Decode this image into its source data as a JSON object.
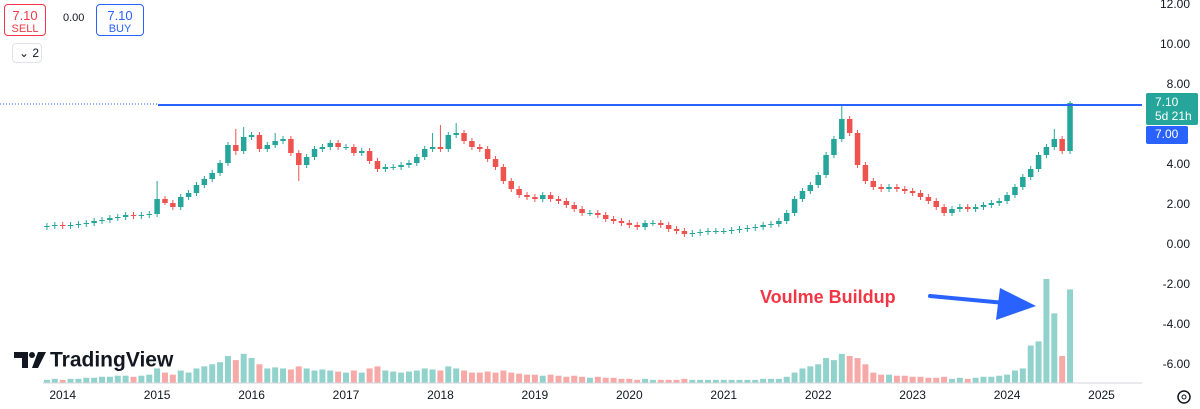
{
  "toolbar": {
    "sell_price": "7.10",
    "sell_label": "SELL",
    "spread": "0.00",
    "buy_price": "7.10",
    "buy_label": "BUY",
    "indicator_count": "2"
  },
  "chart_data": {
    "type": "candlestick",
    "logo": "TradingView",
    "annotation": "Voulme Buildup",
    "categories": [
      null,
      null,
      "2014",
      null,
      null,
      null,
      null,
      null,
      null,
      null,
      null,
      null,
      null,
      null,
      "2015",
      null,
      null,
      null,
      null,
      null,
      null,
      null,
      null,
      null,
      null,
      null,
      "2016",
      null,
      null,
      null,
      null,
      null,
      null,
      null,
      null,
      null,
      null,
      null,
      "2017",
      null,
      null,
      null,
      null,
      null,
      null,
      null,
      null,
      null,
      null,
      null,
      "2018",
      null,
      null,
      null,
      null,
      null,
      null,
      null,
      null,
      null,
      null,
      null,
      "2019",
      null,
      null,
      null,
      null,
      null,
      null,
      null,
      null,
      null,
      null,
      null,
      "2020",
      null,
      null,
      null,
      null,
      null,
      null,
      null,
      null,
      null,
      null,
      null,
      "2021",
      null,
      null,
      null,
      null,
      null,
      null,
      null,
      null,
      null,
      null,
      null,
      "2022",
      null,
      null,
      null,
      null,
      null,
      null,
      null,
      null,
      null,
      null,
      null,
      "2023",
      null,
      null,
      null,
      null,
      null,
      null,
      null,
      null,
      null,
      null,
      null,
      "2024",
      null,
      null,
      null,
      null,
      null,
      null,
      null,
      null,
      null,
      null,
      null,
      "2025",
      null,
      null,
      null,
      null
    ],
    "open": [
      0.9,
      0.95,
      1.0,
      0.95,
      1.0,
      1.05,
      1.1,
      1.2,
      1.25,
      1.35,
      1.4,
      1.5,
      1.45,
      1.5,
      1.55,
      2.3,
      2.1,
      1.9,
      2.4,
      2.6,
      3.0,
      3.3,
      3.6,
      4.1,
      5.0,
      4.7,
      5.4,
      5.5,
      4.8,
      5.0,
      5.2,
      5.3,
      4.6,
      4.0,
      4.4,
      4.8,
      4.9,
      5.1,
      4.9,
      4.9,
      4.6,
      4.7,
      4.2,
      3.8,
      3.9,
      3.9,
      4.0,
      4.1,
      4.4,
      4.8,
      4.9,
      4.8,
      5.5,
      5.6,
      5.2,
      4.9,
      4.8,
      4.3,
      3.9,
      3.2,
      2.8,
      2.5,
      2.4,
      2.3,
      2.5,
      2.3,
      2.2,
      2.0,
      1.8,
      1.6,
      1.6,
      1.5,
      1.3,
      1.2,
      1.1,
      1.0,
      0.9,
      1.1,
      1.1,
      1.0,
      0.8,
      0.7,
      0.55,
      0.6,
      0.65,
      0.7,
      0.7,
      0.7,
      0.75,
      0.8,
      0.85,
      0.9,
      1.0,
      1.05,
      1.2,
      1.6,
      2.3,
      2.7,
      3.0,
      3.5,
      4.5,
      5.3,
      6.3,
      5.6,
      4.0,
      3.2,
      2.9,
      2.8,
      2.9,
      2.8,
      2.7,
      2.6,
      2.4,
      2.2,
      1.9,
      1.6,
      1.8,
      1.9,
      1.8,
      1.9,
      2.0,
      2.1,
      2.2,
      2.5,
      2.9,
      3.4,
      3.8,
      4.5,
      4.9,
      5.3,
      4.7,
      null,
      null,
      null,
      null,
      null,
      null,
      null,
      null
    ],
    "high": [
      1.1,
      1.15,
      1.15,
      1.15,
      1.2,
      1.25,
      1.35,
      1.4,
      1.5,
      1.55,
      1.65,
      1.65,
      1.65,
      1.7,
      3.2,
      2.45,
      2.25,
      2.55,
      2.75,
      3.15,
      3.45,
      3.75,
      4.25,
      5.15,
      5.8,
      5.9,
      5.65,
      5.65,
      5.15,
      5.6,
      5.45,
      5.45,
      4.75,
      4.55,
      4.95,
      5.05,
      5.25,
      5.25,
      5.05,
      5.05,
      4.85,
      4.85,
      4.35,
      4.05,
      4.05,
      4.15,
      4.25,
      4.55,
      4.95,
      5.6,
      6.0,
      5.65,
      6.1,
      5.75,
      5.35,
      5.05,
      4.95,
      4.45,
      4.05,
      3.35,
      2.95,
      2.65,
      2.55,
      2.65,
      2.65,
      2.45,
      2.35,
      2.15,
      1.95,
      1.75,
      1.75,
      1.65,
      1.45,
      1.35,
      1.25,
      1.15,
      1.25,
      1.25,
      1.25,
      1.15,
      0.95,
      0.85,
      0.75,
      0.8,
      0.85,
      0.85,
      0.85,
      0.9,
      0.95,
      1.0,
      1.05,
      1.15,
      1.2,
      1.35,
      1.75,
      2.45,
      2.85,
      3.15,
      3.65,
      4.65,
      5.45,
      7.0,
      6.45,
      5.75,
      4.15,
      3.35,
      3.05,
      3.05,
      3.05,
      2.95,
      2.85,
      2.75,
      2.55,
      2.35,
      2.05,
      1.95,
      2.05,
      2.05,
      2.05,
      2.15,
      2.25,
      2.35,
      2.65,
      3.05,
      3.55,
      3.95,
      4.65,
      5.05,
      5.8,
      5.45,
      7.2,
      null,
      null,
      null,
      null,
      null,
      null,
      null,
      null
    ],
    "low": [
      0.75,
      0.8,
      0.8,
      0.8,
      0.85,
      0.9,
      0.95,
      1.05,
      1.1,
      1.2,
      1.25,
      1.3,
      1.3,
      1.35,
      1.4,
      2.0,
      1.75,
      1.75,
      2.25,
      2.45,
      2.85,
      3.15,
      3.45,
      3.95,
      4.5,
      4.55,
      5.25,
      4.65,
      4.65,
      4.85,
      5.05,
      4.45,
      3.2,
      3.85,
      4.25,
      4.65,
      4.75,
      4.75,
      4.75,
      4.45,
      4.45,
      4.05,
      3.65,
      3.65,
      3.75,
      3.75,
      3.85,
      3.95,
      4.25,
      4.65,
      4.65,
      4.65,
      5.35,
      5.05,
      4.75,
      4.65,
      4.15,
      3.75,
      3.05,
      2.65,
      2.35,
      2.25,
      2.15,
      2.15,
      2.15,
      2.05,
      1.85,
      1.65,
      1.45,
      1.45,
      1.35,
      1.15,
      1.05,
      0.95,
      0.85,
      0.75,
      0.75,
      0.95,
      0.85,
      0.65,
      0.55,
      0.4,
      0.4,
      0.45,
      0.5,
      0.55,
      0.55,
      0.55,
      0.6,
      0.65,
      0.7,
      0.75,
      0.85,
      0.9,
      1.05,
      1.45,
      2.15,
      2.55,
      2.85,
      3.35,
      4.35,
      5.15,
      5.45,
      3.85,
      3.05,
      2.75,
      2.65,
      2.65,
      2.65,
      2.55,
      2.45,
      2.25,
      2.05,
      1.75,
      1.45,
      1.45,
      1.65,
      1.65,
      1.65,
      1.75,
      1.85,
      1.95,
      2.05,
      2.35,
      2.75,
      3.25,
      3.65,
      4.35,
      4.75,
      4.55,
      4.55,
      null,
      null,
      null,
      null,
      null,
      null,
      null,
      null
    ],
    "close": [
      0.95,
      1.0,
      0.95,
      1.0,
      1.05,
      1.1,
      1.2,
      1.25,
      1.35,
      1.4,
      1.5,
      1.45,
      1.5,
      1.55,
      2.3,
      2.1,
      1.9,
      2.4,
      2.6,
      3.0,
      3.3,
      3.6,
      4.1,
      5.0,
      4.7,
      5.4,
      5.5,
      4.8,
      5.0,
      5.2,
      5.3,
      4.6,
      4.0,
      4.4,
      4.8,
      4.9,
      5.1,
      4.9,
      4.9,
      4.6,
      4.7,
      4.2,
      3.8,
      3.9,
      3.9,
      4.0,
      4.1,
      4.4,
      4.8,
      4.9,
      4.8,
      5.5,
      5.6,
      5.2,
      4.9,
      4.8,
      4.3,
      3.9,
      3.2,
      2.8,
      2.5,
      2.4,
      2.3,
      2.5,
      2.3,
      2.2,
      2.0,
      1.8,
      1.6,
      1.6,
      1.5,
      1.3,
      1.2,
      1.1,
      1.0,
      0.9,
      1.1,
      1.1,
      1.0,
      0.8,
      0.7,
      0.55,
      0.6,
      0.65,
      0.7,
      0.7,
      0.7,
      0.75,
      0.8,
      0.85,
      0.9,
      1.0,
      1.05,
      1.2,
      1.6,
      2.3,
      2.7,
      3.0,
      3.5,
      4.5,
      5.3,
      6.3,
      5.6,
      4.0,
      3.2,
      2.9,
      2.8,
      2.9,
      2.8,
      2.7,
      2.6,
      2.4,
      2.2,
      1.9,
      1.6,
      1.8,
      1.9,
      1.8,
      1.9,
      2.0,
      2.1,
      2.2,
      2.5,
      2.9,
      3.4,
      3.8,
      4.5,
      4.9,
      5.3,
      4.7,
      7.1,
      null,
      null,
      null,
      null,
      null,
      null,
      null,
      null
    ],
    "volume": [
      3,
      4,
      3,
      4,
      4,
      5,
      5,
      6,
      6,
      7,
      7,
      6,
      7,
      8,
      14,
      10,
      8,
      12,
      10,
      14,
      16,
      18,
      20,
      26,
      22,
      28,
      24,
      18,
      14,
      15,
      14,
      13,
      16,
      14,
      12,
      13,
      12,
      11,
      10,
      12,
      10,
      14,
      16,
      12,
      11,
      10,
      11,
      12,
      14,
      13,
      12,
      16,
      14,
      12,
      10,
      10,
      11,
      10,
      12,
      10,
      9,
      8,
      8,
      7,
      8,
      7,
      6,
      7,
      6,
      5,
      6,
      5,
      5,
      4,
      4,
      3,
      4,
      3,
      3,
      3,
      3,
      4,
      3,
      3,
      3,
      3,
      3,
      3,
      3,
      3,
      3,
      4,
      4,
      4,
      6,
      10,
      14,
      16,
      18,
      24,
      22,
      28,
      26,
      24,
      18,
      10,
      8,
      8,
      7,
      7,
      6,
      6,
      5,
      5,
      6,
      4,
      5,
      4,
      5,
      6,
      6,
      7,
      8,
      12,
      14,
      36,
      40,
      100,
      67,
      26,
      90,
      null,
      null,
      null,
      null,
      null,
      null,
      null,
      null
    ],
    "up_color": "#26a69a",
    "down_color": "#ef5350",
    "volume_up_color": "#92d2cc",
    "volume_down_color": "#f7a9a7",
    "ylim": [
      -6.9,
      12.25
    ],
    "yticks": [
      {
        "value": 12,
        "label": "12.00"
      },
      {
        "value": 10,
        "label": "10.00"
      },
      {
        "value": 8,
        "label": "8.00"
      },
      {
        "value": 4,
        "label": "4.00"
      },
      {
        "value": 2,
        "label": "2.00"
      },
      {
        "value": 0,
        "label": "0.00"
      },
      {
        "value": -2,
        "label": "-2.00"
      },
      {
        "value": -4,
        "label": "-4.00"
      },
      {
        "value": -6,
        "label": "-6.00"
      }
    ],
    "hline": 7.0,
    "hline_color": "#2962ff",
    "hline_label": "7.00",
    "last_price_label": "7.10",
    "countdown": "5d 21h"
  }
}
